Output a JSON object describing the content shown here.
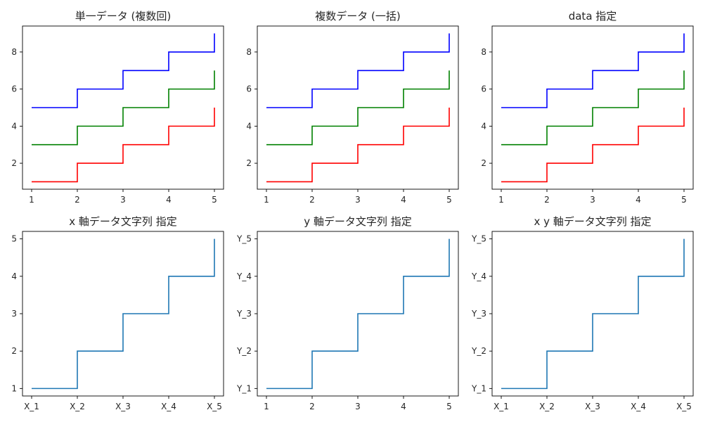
{
  "figure": {
    "background": "#ffffff"
  },
  "chart_data": [
    {
      "type": "line",
      "drawstyle": "steps-post",
      "title": "単一データ (複数回)",
      "x": [
        1,
        2,
        3,
        4,
        5
      ],
      "series": [
        {
          "values": [
            1,
            2,
            3,
            4,
            5
          ],
          "color": "#ff0000"
        },
        {
          "values": [
            3,
            4,
            5,
            6,
            7
          ],
          "color": "#008000"
        },
        {
          "values": [
            5,
            6,
            7,
            8,
            9
          ],
          "color": "#0000ff"
        }
      ],
      "xticks": [
        1,
        2,
        3,
        4,
        5
      ],
      "yticks": [
        2,
        4,
        6,
        8
      ],
      "xlim": [
        0.8,
        5.2
      ],
      "ylim": [
        0.6,
        9.4
      ],
      "grid": false
    },
    {
      "type": "line",
      "drawstyle": "steps-post",
      "title": "複数データ (一括)",
      "x": [
        1,
        2,
        3,
        4,
        5
      ],
      "series": [
        {
          "values": [
            1,
            2,
            3,
            4,
            5
          ],
          "color": "#ff0000"
        },
        {
          "values": [
            3,
            4,
            5,
            6,
            7
          ],
          "color": "#008000"
        },
        {
          "values": [
            5,
            6,
            7,
            8,
            9
          ],
          "color": "#0000ff"
        }
      ],
      "xticks": [
        1,
        2,
        3,
        4,
        5
      ],
      "yticks": [
        2,
        4,
        6,
        8
      ],
      "xlim": [
        0.8,
        5.2
      ],
      "ylim": [
        0.6,
        9.4
      ],
      "grid": false
    },
    {
      "type": "line",
      "drawstyle": "steps-post",
      "title": "data 指定",
      "x": [
        1,
        2,
        3,
        4,
        5
      ],
      "series": [
        {
          "values": [
            1,
            2,
            3,
            4,
            5
          ],
          "color": "#ff0000"
        },
        {
          "values": [
            3,
            4,
            5,
            6,
            7
          ],
          "color": "#008000"
        },
        {
          "values": [
            5,
            6,
            7,
            8,
            9
          ],
          "color": "#0000ff"
        }
      ],
      "xticks": [
        1,
        2,
        3,
        4,
        5
      ],
      "yticks": [
        2,
        4,
        6,
        8
      ],
      "xlim": [
        0.8,
        5.2
      ],
      "ylim": [
        0.6,
        9.4
      ],
      "grid": false
    },
    {
      "type": "line",
      "drawstyle": "steps-post",
      "title": "x 軸データ文字列 指定",
      "x": [
        "X_1",
        "X_2",
        "X_3",
        "X_4",
        "X_5"
      ],
      "series": [
        {
          "values": [
            1,
            2,
            3,
            4,
            5
          ],
          "color": "#1f77b4"
        }
      ],
      "xticks": [
        "X_1",
        "X_2",
        "X_3",
        "X_4",
        "X_5"
      ],
      "yticks": [
        1,
        2,
        3,
        4,
        5
      ],
      "xlim": [
        -0.2,
        4.2
      ],
      "ylim": [
        0.8,
        5.2
      ],
      "grid": false
    },
    {
      "type": "line",
      "drawstyle": "steps-post",
      "title": "y 軸データ文字列 指定",
      "x": [
        1,
        2,
        3,
        4,
        5
      ],
      "series": [
        {
          "values": [
            "Y_1",
            "Y_2",
            "Y_3",
            "Y_4",
            "Y_5"
          ],
          "color": "#1f77b4"
        }
      ],
      "xticks": [
        1,
        2,
        3,
        4,
        5
      ],
      "yticks": [
        "Y_1",
        "Y_2",
        "Y_3",
        "Y_4",
        "Y_5"
      ],
      "xlim": [
        0.8,
        5.2
      ],
      "ylim": [
        -0.2,
        4.2
      ],
      "grid": false
    },
    {
      "type": "line",
      "drawstyle": "steps-post",
      "title": "x y 軸データ文字列 指定",
      "x": [
        "X_1",
        "X_2",
        "X_3",
        "X_4",
        "X_5"
      ],
      "series": [
        {
          "values": [
            "Y_1",
            "Y_2",
            "Y_3",
            "Y_4",
            "Y_5"
          ],
          "color": "#1f77b4"
        }
      ],
      "xticks": [
        "X_1",
        "X_2",
        "X_3",
        "X_4",
        "X_5"
      ],
      "yticks": [
        "Y_1",
        "Y_2",
        "Y_3",
        "Y_4",
        "Y_5"
      ],
      "xlim": [
        -0.2,
        4.2
      ],
      "ylim": [
        -0.2,
        4.2
      ],
      "grid": false
    }
  ]
}
